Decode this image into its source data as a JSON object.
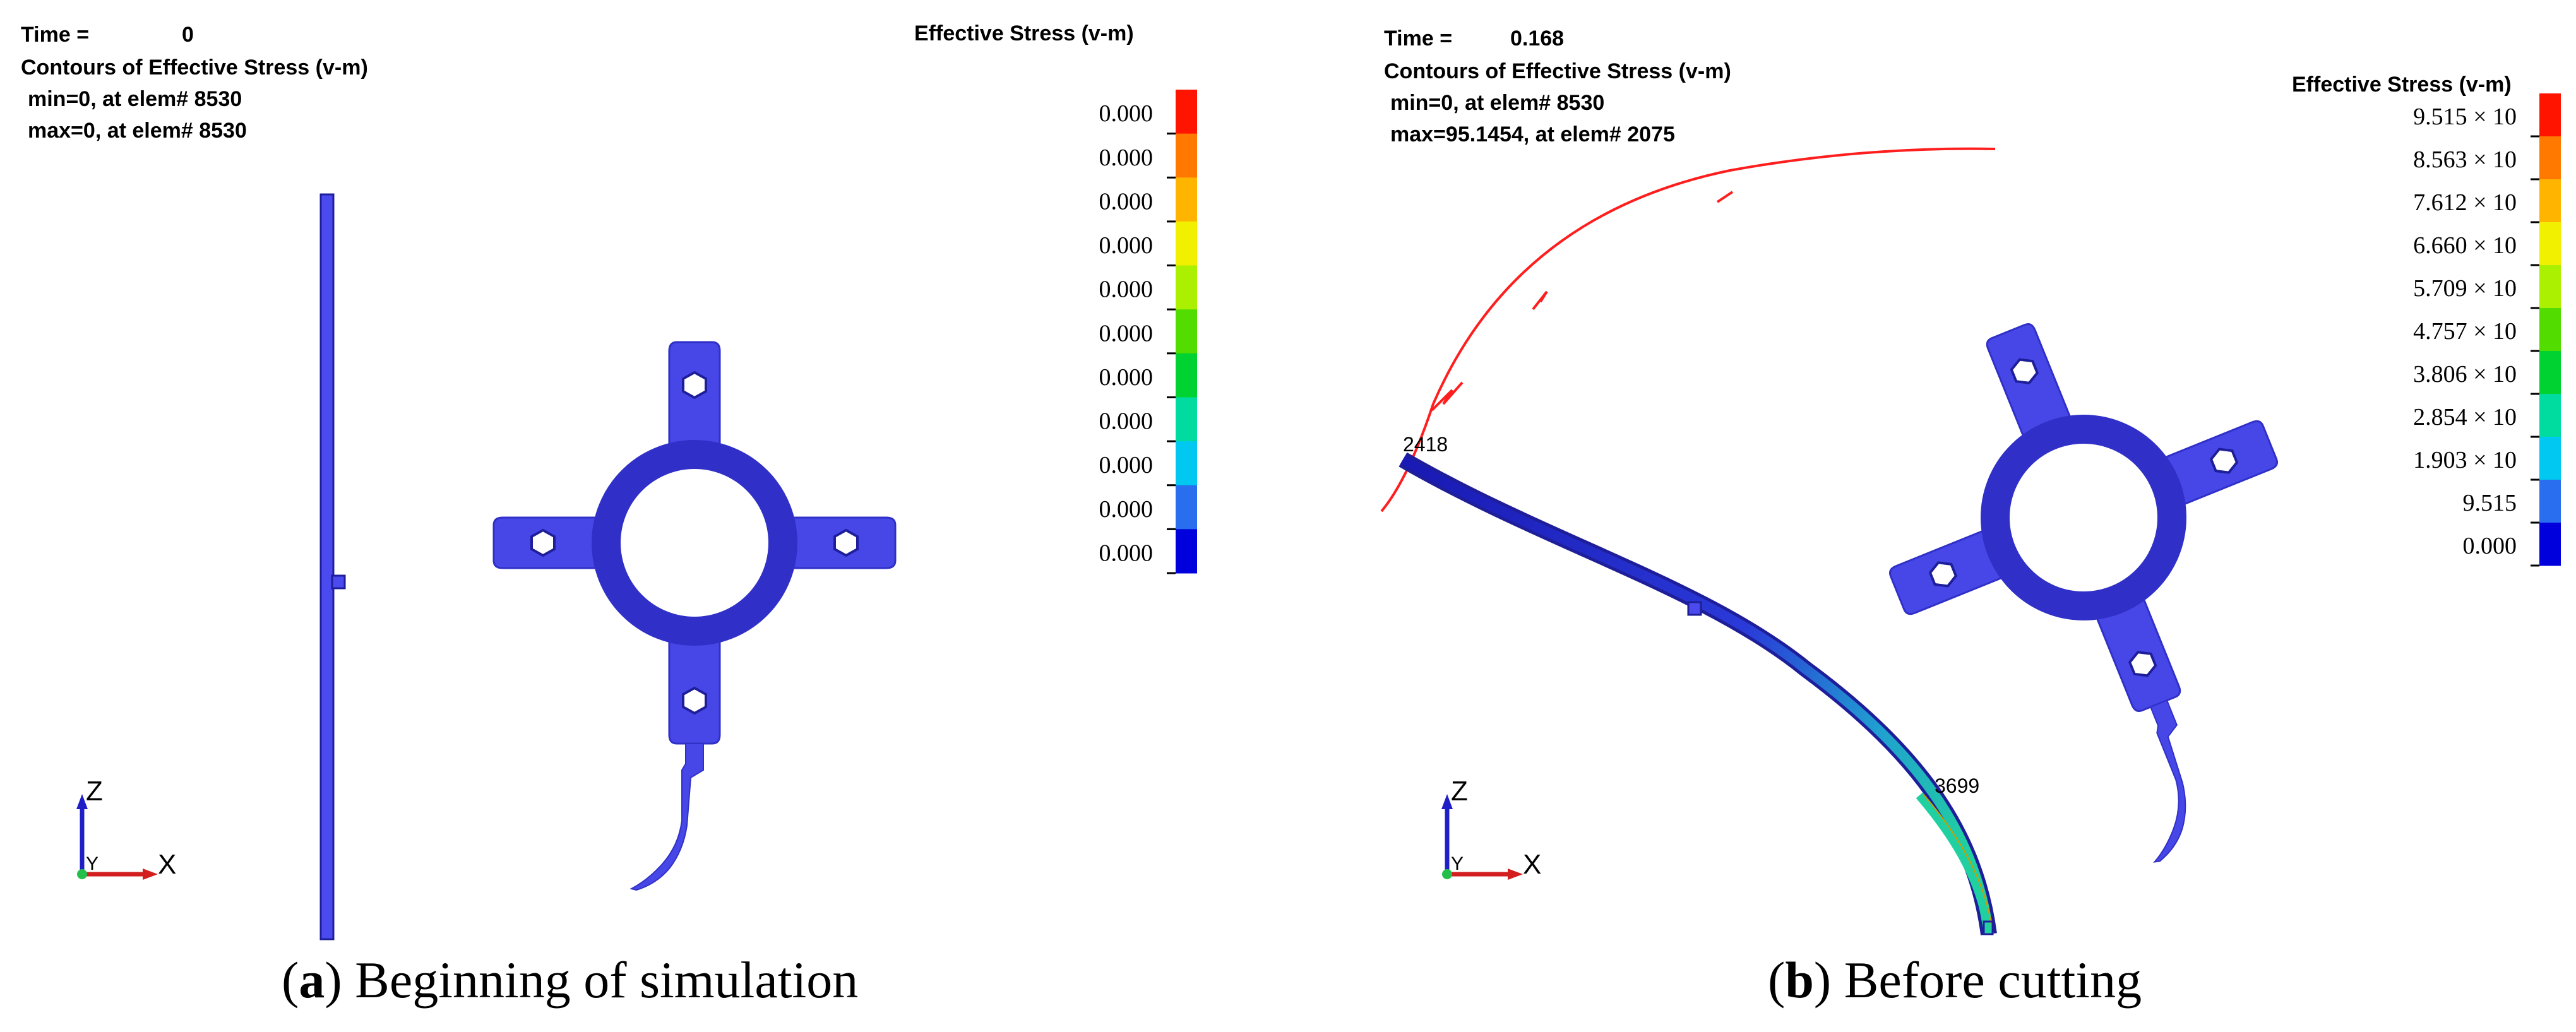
{
  "colors": {
    "mesh_blue": "#4747e8",
    "mesh_edge": "#1e1e9a",
    "curve_red": "#ff1e1e",
    "axis_z": "#1f1fc8",
    "axis_x": "#d21e1e",
    "axis_origin": "#22c04a",
    "stress_green": "#20d0a0"
  },
  "legend_scale": [
    "#0000dd",
    "#2a6ef0",
    "#00c8f0",
    "#00dca0",
    "#00d232",
    "#52dc00",
    "#aaf000",
    "#f0f000",
    "#ffb400",
    "#ff7800",
    "#ff1400"
  ],
  "panels": [
    {
      "time_label": "Time =",
      "time_value": "0",
      "contour_title": "Contours of Effective Stress (v-m)",
      "min_text": "min=0, at elem# 8530",
      "max_text": "max=0, at elem# 8530",
      "legend_title": "Effective Stress (v-m)",
      "legend_values": [
        "0.000",
        "0.000",
        "0.000",
        "0.000",
        "0.000",
        "0.000",
        "0.000",
        "0.000",
        "0.000",
        "0.000",
        "0.000"
      ],
      "axis_labels": {
        "z": "Z",
        "x": "X",
        "y": "Y"
      },
      "caption_letter": "a",
      "caption_text": " Beginning of simulation"
    },
    {
      "time_label": "Time =",
      "time_value": "0.168",
      "contour_title": "Contours of Effective Stress (v-m)",
      "min_text": "min=0, at elem# 8530",
      "max_text": "max=95.1454, at elem# 2075",
      "legend_title": "Effective Stress (v-m)",
      "legend_values": [
        "9.515 × 10",
        "8.563 × 10",
        "7.612 × 10",
        "6.660 × 10",
        "5.709 × 10",
        "4.757 × 10",
        "3.806 × 10",
        "2.854 × 10",
        "1.903 × 10",
        "9.515",
        "0.000"
      ],
      "axis_labels": {
        "z": "Z",
        "x": "X",
        "y": "Y"
      },
      "node_labels": [
        "2418",
        "3699"
      ],
      "caption_letter": "b",
      "caption_text": " Before cutting"
    }
  ]
}
